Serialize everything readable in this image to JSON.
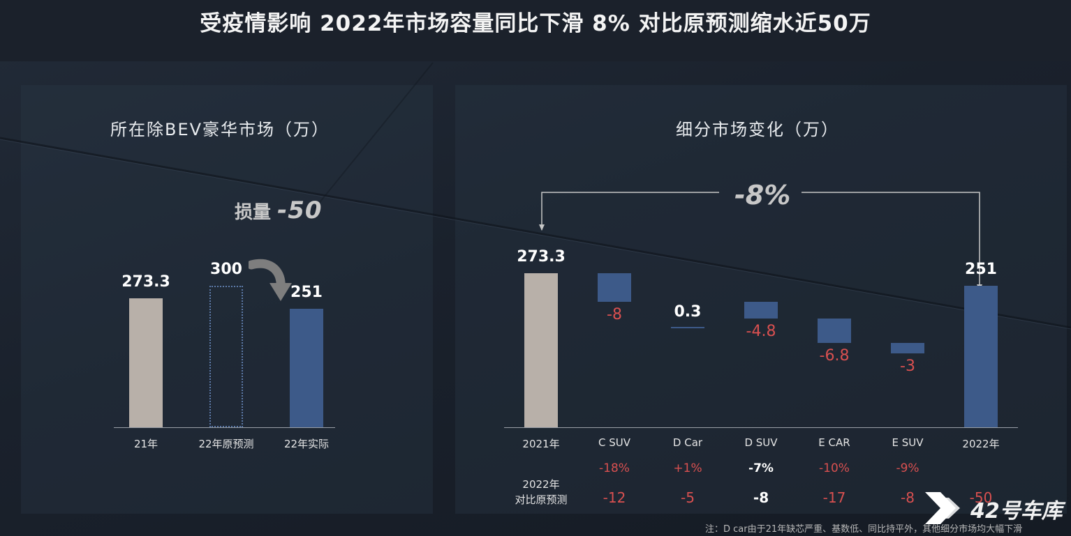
{
  "title": "受疫情影响  2022年市场容量同比下滑 8%  对比原预测缩水近50万",
  "colors": {
    "gray_bar": "#b8b0a9",
    "blue_bar": "#3d5a89",
    "negative": "#d95050"
  },
  "left_chart": {
    "subtitle": "所在除BEV豪华市场（万）",
    "loss_label": "损量",
    "loss_value": "-50",
    "arrow_icon": "curved-arrow-down"
  },
  "right_chart": {
    "subtitle": "细分市场变化（万）",
    "overall_change": "-8%",
    "row1_label": "",
    "row2_label_line1": "2022年",
    "row2_label_line2": "对比原预测",
    "yoy_pct": [
      "-18%",
      "+1%",
      "-7%",
      "-10%",
      "-9%"
    ],
    "vs_forecast": [
      "-12",
      "-5",
      "-8",
      "-17",
      "-8",
      "-50"
    ]
  },
  "chart_data": [
    {
      "type": "bar",
      "title": "所在除BEV豪华市场（万）",
      "categories": [
        "21年",
        "22年原预测",
        "22年实际"
      ],
      "values": [
        273.3,
        300,
        251
      ],
      "value_labels": [
        "273.3",
        "300",
        "251"
      ],
      "styles": [
        "solid-gray",
        "dotted-outline",
        "solid-blue"
      ],
      "ylim": [
        0,
        380
      ]
    },
    {
      "type": "waterfall",
      "title": "细分市场变化（万）",
      "categories": [
        "2021年",
        "C SUV",
        "D Car",
        "D SUV",
        "E CAR",
        "E SUV",
        "2022年"
      ],
      "values": [
        273.3,
        -8,
        0.3,
        -4.8,
        -6.8,
        -3,
        251
      ],
      "value_labels": [
        "273.3",
        "-8",
        "0.3",
        "-4.8",
        "-6.8",
        "-3",
        "251"
      ],
      "kinds": [
        "total",
        "delta",
        "delta",
        "delta",
        "delta",
        "delta",
        "total"
      ],
      "yoy_change": [
        "",
        "-18%",
        "+1%",
        "-7%",
        "-10%",
        "-9%",
        ""
      ],
      "vs_forecast": [
        "",
        "-12",
        "-5",
        "-8",
        "-17",
        "-8",
        "-50"
      ],
      "annotation": "-8%"
    }
  ],
  "brand": {
    "name": "42号车库",
    "logo_icon": "42-garage-logo"
  },
  "footnote": "注：D car由于21年缺芯严重、基数低、同比持平外，其他细分市场均大幅下滑"
}
